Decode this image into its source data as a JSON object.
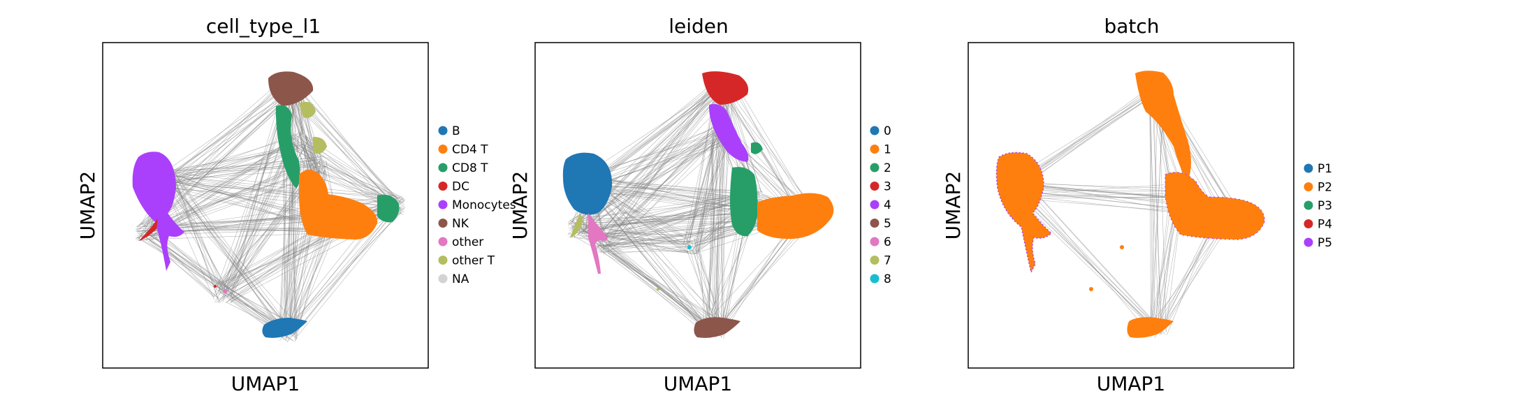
{
  "chart_data": [
    {
      "type": "scatter",
      "title": "cell_type_l1",
      "xlabel": "UMAP1",
      "ylabel": "UMAP2",
      "grid": false,
      "ticks": false,
      "legend_placement": "right",
      "edges_color": "#808080",
      "legend": [
        {
          "label": "B",
          "color": "#1f77b4"
        },
        {
          "label": "CD4 T",
          "color": "#ff7f0e"
        },
        {
          "label": "CD8 T",
          "color": "#279e68"
        },
        {
          "label": "DC",
          "color": "#d62728"
        },
        {
          "label": "Monocytes",
          "color": "#aa40fc"
        },
        {
          "label": "NK",
          "color": "#8c564b"
        },
        {
          "label": "other",
          "color": "#e377c2"
        },
        {
          "label": "other T",
          "color": "#b5bd61"
        },
        {
          "label": "NA",
          "color": "#d3d3d3"
        }
      ],
      "clusters": [
        {
          "label": "Monocytes",
          "x": 0.2,
          "y": 0.58
        },
        {
          "label": "NK",
          "x": 0.58,
          "y": 0.87
        },
        {
          "label": "CD8 T",
          "x": 0.6,
          "y": 0.7
        },
        {
          "label": "other T",
          "x": 0.66,
          "y": 0.62
        },
        {
          "label": "CD4 T",
          "x": 0.7,
          "y": 0.44
        },
        {
          "label": "CD8 T",
          "x": 0.9,
          "y": 0.5
        },
        {
          "label": "B",
          "x": 0.57,
          "y": 0.11
        },
        {
          "label": "DC",
          "x": 0.13,
          "y": 0.42
        },
        {
          "label": "other",
          "x": 0.37,
          "y": 0.23
        }
      ]
    },
    {
      "type": "scatter",
      "title": "leiden",
      "xlabel": "UMAP1",
      "ylabel": "UMAP2",
      "grid": false,
      "ticks": false,
      "legend_placement": "right",
      "edges_color": "#808080",
      "legend": [
        {
          "label": "0",
          "color": "#1f77b4"
        },
        {
          "label": "1",
          "color": "#ff7f0e"
        },
        {
          "label": "2",
          "color": "#279e68"
        },
        {
          "label": "3",
          "color": "#d62728"
        },
        {
          "label": "4",
          "color": "#aa40fc"
        },
        {
          "label": "5",
          "color": "#8c564b"
        },
        {
          "label": "6",
          "color": "#e377c2"
        },
        {
          "label": "7",
          "color": "#b5bd61"
        },
        {
          "label": "8",
          "color": "#17becf"
        }
      ],
      "clusters": [
        {
          "label": "0",
          "x": 0.16,
          "y": 0.57
        },
        {
          "label": "3",
          "x": 0.58,
          "y": 0.87
        },
        {
          "label": "4",
          "x": 0.57,
          "y": 0.72
        },
        {
          "label": "2",
          "x": 0.67,
          "y": 0.52
        },
        {
          "label": "1",
          "x": 0.83,
          "y": 0.47
        },
        {
          "label": "5",
          "x": 0.55,
          "y": 0.12
        },
        {
          "label": "6",
          "x": 0.21,
          "y": 0.38
        },
        {
          "label": "7",
          "x": 0.13,
          "y": 0.43
        },
        {
          "label": "8",
          "x": 0.48,
          "y": 0.38
        }
      ]
    },
    {
      "type": "scatter",
      "title": "batch",
      "xlabel": "UMAP1",
      "ylabel": "UMAP2",
      "grid": false,
      "ticks": false,
      "legend_placement": "right",
      "edges_color": "#808080",
      "legend": [
        {
          "label": "P1",
          "color": "#1f77b4"
        },
        {
          "label": "P2",
          "color": "#ff7f0e"
        },
        {
          "label": "P3",
          "color": "#279e68"
        },
        {
          "label": "P4",
          "color": "#d62728"
        },
        {
          "label": "P5",
          "color": "#aa40fc"
        }
      ],
      "clusters": [
        {
          "label": "P2",
          "x": 0.15,
          "y": 0.55
        },
        {
          "label": "P2",
          "x": 0.58,
          "y": 0.85
        },
        {
          "label": "P2",
          "x": 0.65,
          "y": 0.55
        },
        {
          "label": "P2",
          "x": 0.8,
          "y": 0.48
        },
        {
          "label": "P2",
          "x": 0.58,
          "y": 0.12
        }
      ]
    }
  ]
}
